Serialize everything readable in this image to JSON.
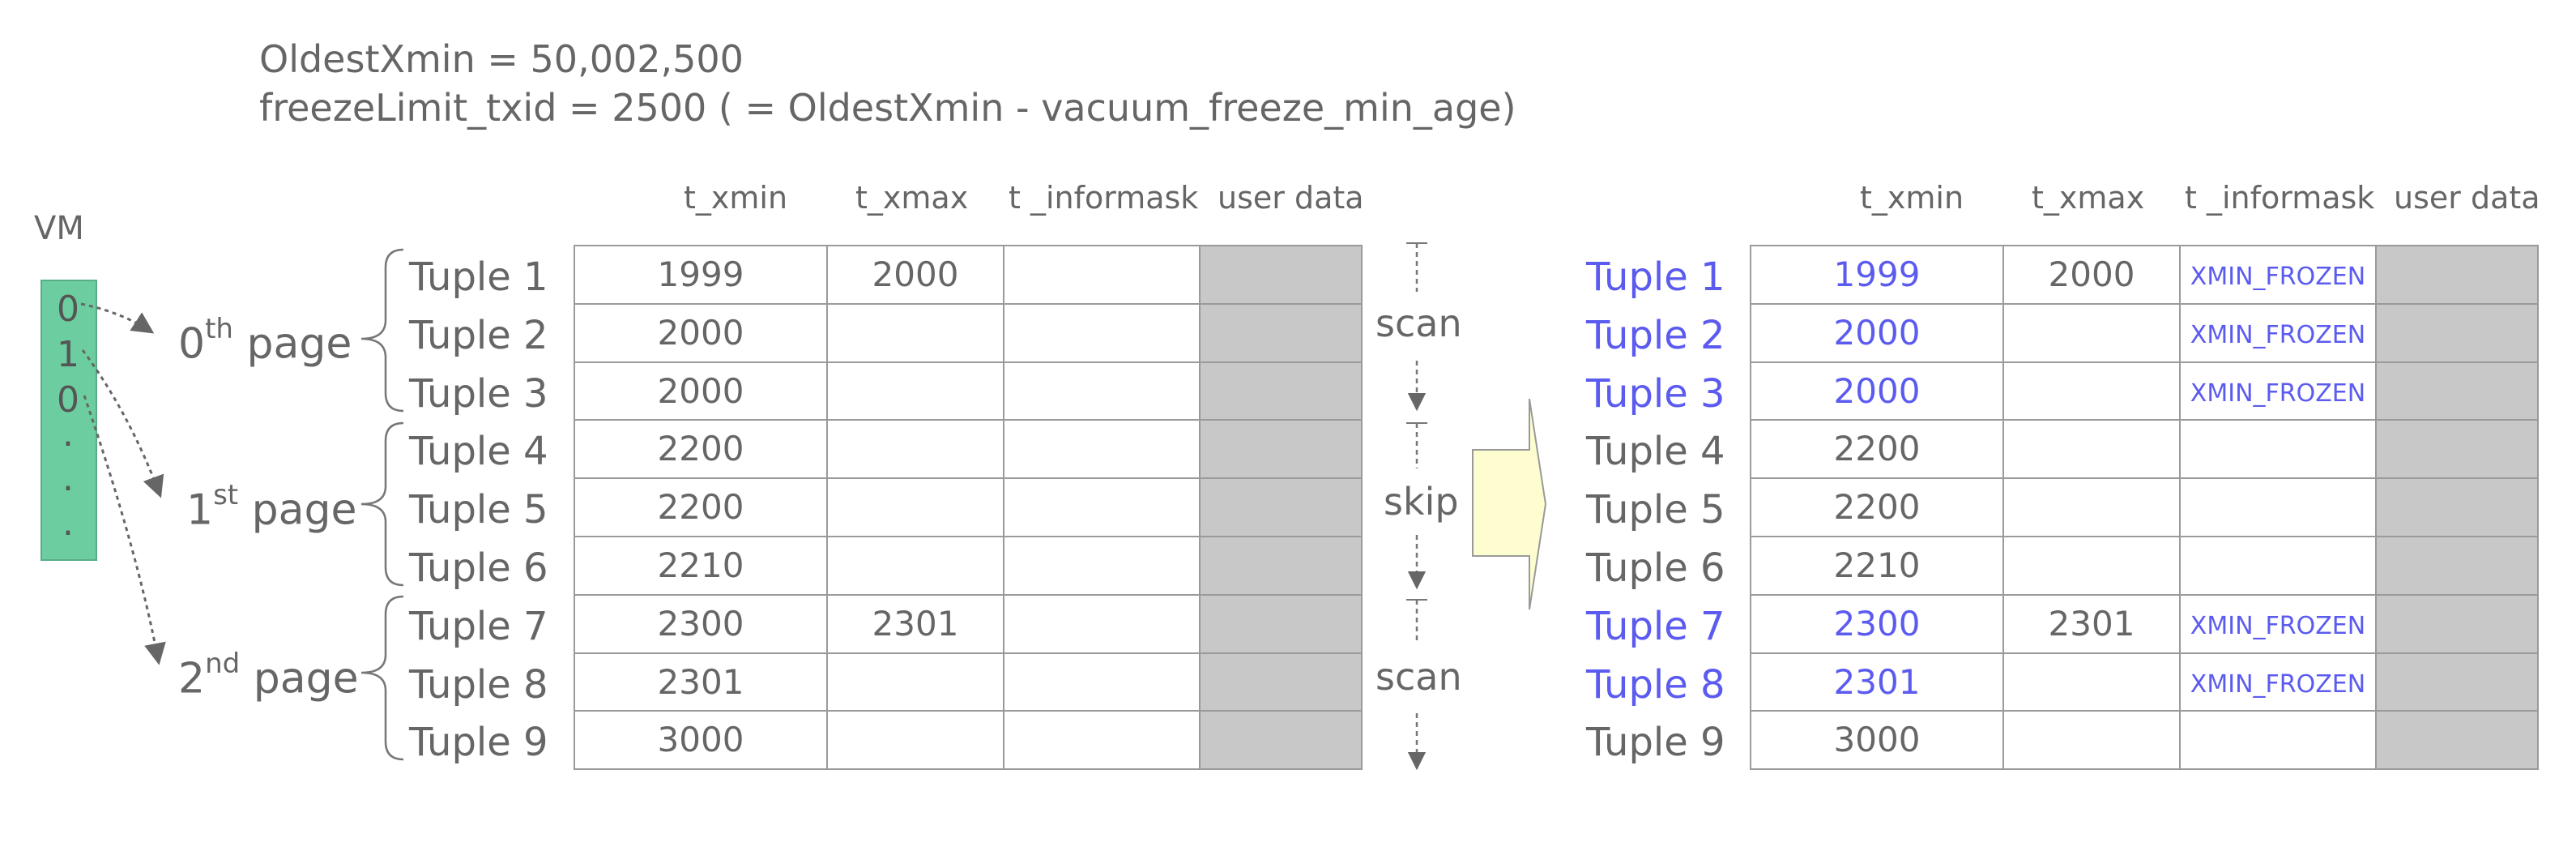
{
  "formula": {
    "line1": "OldestXmin = 50,002,500",
    "line2": "freezeLimit_txid  = 2500 ( = OldestXmin - vacuum_freeze_min_age)"
  },
  "vm": {
    "label": "VM",
    "values": [
      "0",
      "1",
      "0",
      ".",
      ".",
      "."
    ]
  },
  "columns": [
    "t_xmin",
    "t_xmax",
    "t _informask",
    "user data"
  ],
  "pages": [
    {
      "num": "0",
      "suffix": "th",
      "word": "page"
    },
    {
      "num": "1",
      "suffix": "st",
      "word": "page"
    },
    {
      "num": "2",
      "suffix": "nd",
      "word": "page"
    }
  ],
  "actions": [
    "scan",
    "skip",
    "scan"
  ],
  "before": [
    {
      "tuple": "Tuple 1",
      "xmin": "1999",
      "xmax": "2000",
      "mask": ""
    },
    {
      "tuple": "Tuple 2",
      "xmin": "2000",
      "xmax": "",
      "mask": ""
    },
    {
      "tuple": "Tuple 3",
      "xmin": "2000",
      "xmax": "",
      "mask": ""
    },
    {
      "tuple": "Tuple 4",
      "xmin": "2200",
      "xmax": "",
      "mask": ""
    },
    {
      "tuple": "Tuple 5",
      "xmin": "2200",
      "xmax": "",
      "mask": ""
    },
    {
      "tuple": "Tuple 6",
      "xmin": "2210",
      "xmax": "",
      "mask": ""
    },
    {
      "tuple": "Tuple 7",
      "xmin": "2300",
      "xmax": "2301",
      "mask": ""
    },
    {
      "tuple": "Tuple 8",
      "xmin": "2301",
      "xmax": "",
      "mask": ""
    },
    {
      "tuple": "Tuple 9",
      "xmin": "3000",
      "xmax": "",
      "mask": ""
    }
  ],
  "after": [
    {
      "tuple": "Tuple 1",
      "xmin": "1999",
      "xmax": "2000",
      "mask": "XMIN_FROZEN",
      "frozen": true
    },
    {
      "tuple": "Tuple 2",
      "xmin": "2000",
      "xmax": "",
      "mask": "XMIN_FROZEN",
      "frozen": true
    },
    {
      "tuple": "Tuple 3",
      "xmin": "2000",
      "xmax": "",
      "mask": "XMIN_FROZEN",
      "frozen": true
    },
    {
      "tuple": "Tuple 4",
      "xmin": "2200",
      "xmax": "",
      "mask": "",
      "frozen": false
    },
    {
      "tuple": "Tuple 5",
      "xmin": "2200",
      "xmax": "",
      "mask": "",
      "frozen": false
    },
    {
      "tuple": "Tuple 6",
      "xmin": "2210",
      "xmax": "",
      "mask": "",
      "frozen": false
    },
    {
      "tuple": "Tuple 7",
      "xmin": "2300",
      "xmax": "2301",
      "mask": "XMIN_FROZEN",
      "frozen": true
    },
    {
      "tuple": "Tuple 8",
      "xmin": "2301",
      "xmax": "",
      "mask": "XMIN_FROZEN",
      "frozen": true
    },
    {
      "tuple": "Tuple 9",
      "xmin": "3000",
      "xmax": "",
      "mask": "",
      "frozen": false
    }
  ],
  "colors": {
    "vm_fill": "#6ccda0",
    "frozen_text": "#5b5bf0",
    "user_data_fill": "#c8c8c8",
    "arrow_fill": "#fdfdd0"
  }
}
